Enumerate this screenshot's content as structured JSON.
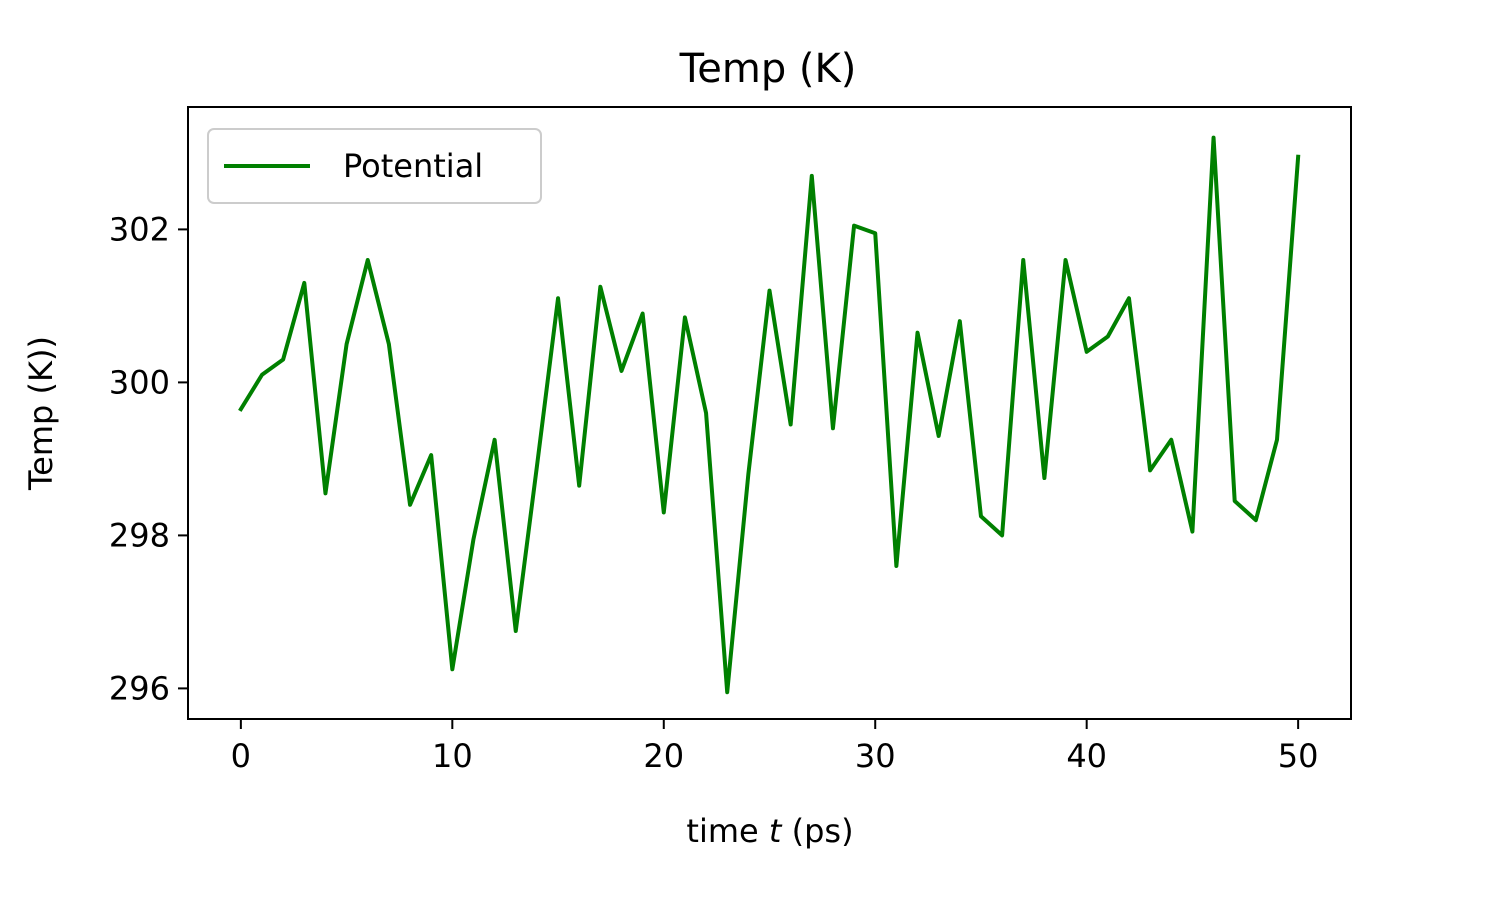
{
  "chart_data": {
    "type": "line",
    "title": "Temp (K)",
    "xlabel_prefix": "time ",
    "xlabel_var": "t",
    "xlabel_suffix": " (ps)",
    "ylabel": "Temp (K))",
    "xlim": [
      -2.5,
      52.5
    ],
    "ylim": [
      295.6,
      303.6
    ],
    "xticks": [
      0,
      10,
      20,
      30,
      40,
      50
    ],
    "yticks": [
      296,
      298,
      300,
      302
    ],
    "grid": false,
    "legend_position": "upper left",
    "series": [
      {
        "name": "Potential",
        "color": "#008000",
        "x": [
          0,
          1,
          2,
          3,
          4,
          5,
          6,
          7,
          8,
          9,
          10,
          11,
          12,
          13,
          14,
          15,
          16,
          17,
          18,
          19,
          20,
          21,
          22,
          23,
          24,
          25,
          26,
          27,
          28,
          29,
          30,
          31,
          32,
          33,
          34,
          35,
          36,
          37,
          38,
          39,
          40,
          41,
          42,
          43,
          44,
          45,
          46,
          47,
          48,
          49,
          50
        ],
        "y": [
          299.65,
          300.1,
          300.3,
          301.3,
          298.55,
          300.5,
          301.6,
          300.5,
          298.4,
          299.05,
          296.25,
          297.95,
          299.25,
          296.75,
          298.9,
          301.1,
          298.65,
          301.25,
          300.15,
          300.9,
          298.3,
          300.85,
          299.6,
          295.95,
          298.8,
          301.2,
          299.45,
          302.7,
          299.4,
          302.05,
          301.95,
          297.6,
          300.65,
          299.3,
          300.8,
          298.25,
          298.0,
          301.6,
          298.75,
          301.6,
          300.4,
          300.6,
          301.1,
          298.85,
          299.25,
          298.05,
          303.2,
          298.45,
          298.2,
          299.25,
          302.95
        ]
      }
    ]
  }
}
